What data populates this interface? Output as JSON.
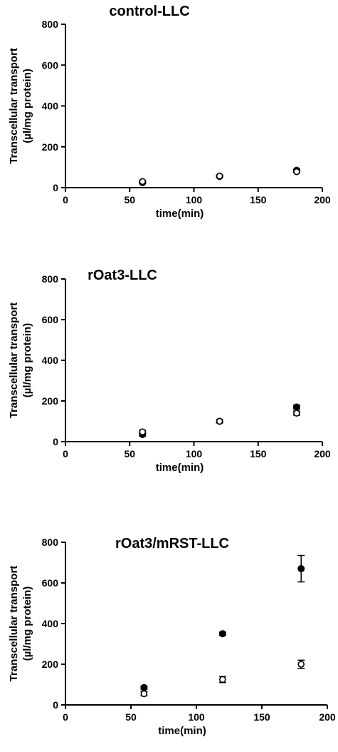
{
  "chart_data": [
    {
      "type": "scatter",
      "title": "control-LLC",
      "xlabel": "time(min)",
      "ylabel": [
        "Transcellular transport",
        "(µl/mg protein)"
      ],
      "xlim": [
        0,
        200
      ],
      "ylim": [
        0,
        800
      ],
      "xticks": [
        "0",
        "50",
        "100",
        "150",
        "200"
      ],
      "yticks": [
        "0",
        "200",
        "400",
        "600",
        "800"
      ],
      "series": [
        {
          "marker": "filled-circle",
          "x": [
            60,
            120,
            180
          ],
          "y": [
            25,
            55,
            85
          ],
          "err": [
            5,
            5,
            5
          ]
        },
        {
          "marker": "open-circle",
          "x": [
            60,
            120,
            180
          ],
          "y": [
            30,
            57,
            78
          ],
          "err": [
            5,
            5,
            5
          ]
        }
      ]
    },
    {
      "type": "scatter",
      "title": "rOat3-LLC",
      "xlabel": "time(min)",
      "ylabel": [
        "Transcellular transport",
        "(µl/mg protein)"
      ],
      "xlim": [
        0,
        200
      ],
      "ylim": [
        0,
        800
      ],
      "xticks": [
        "0",
        "50",
        "100",
        "150",
        "200"
      ],
      "yticks": [
        "0",
        "200",
        "400",
        "600",
        "800"
      ],
      "series": [
        {
          "marker": "filled-circle",
          "x": [
            60,
            120,
            180
          ],
          "y": [
            35,
            100,
            170
          ],
          "err": [
            8,
            8,
            10
          ]
        },
        {
          "marker": "open-circle",
          "x": [
            60,
            120,
            180
          ],
          "y": [
            48,
            100,
            140
          ],
          "err": [
            8,
            8,
            10
          ]
        }
      ]
    },
    {
      "type": "scatter",
      "title": "rOat3/mRST-LLC",
      "xlabel": "time(min)",
      "ylabel": [
        "Transcellular transport",
        "(µl/mg protein)"
      ],
      "xlim": [
        0,
        200
      ],
      "ylim": [
        0,
        800
      ],
      "xticks": [
        "0",
        "50",
        "100",
        "150",
        "200"
      ],
      "yticks": [
        "0",
        "200",
        "400",
        "600",
        "800"
      ],
      "series": [
        {
          "marker": "filled-circle",
          "x": [
            60,
            120,
            180
          ],
          "y": [
            85,
            350,
            670
          ],
          "err": [
            8,
            8,
            65
          ]
        },
        {
          "marker": "open-circle",
          "x": [
            60,
            120,
            180
          ],
          "y": [
            55,
            125,
            200
          ],
          "err": [
            10,
            15,
            20
          ]
        }
      ]
    }
  ]
}
